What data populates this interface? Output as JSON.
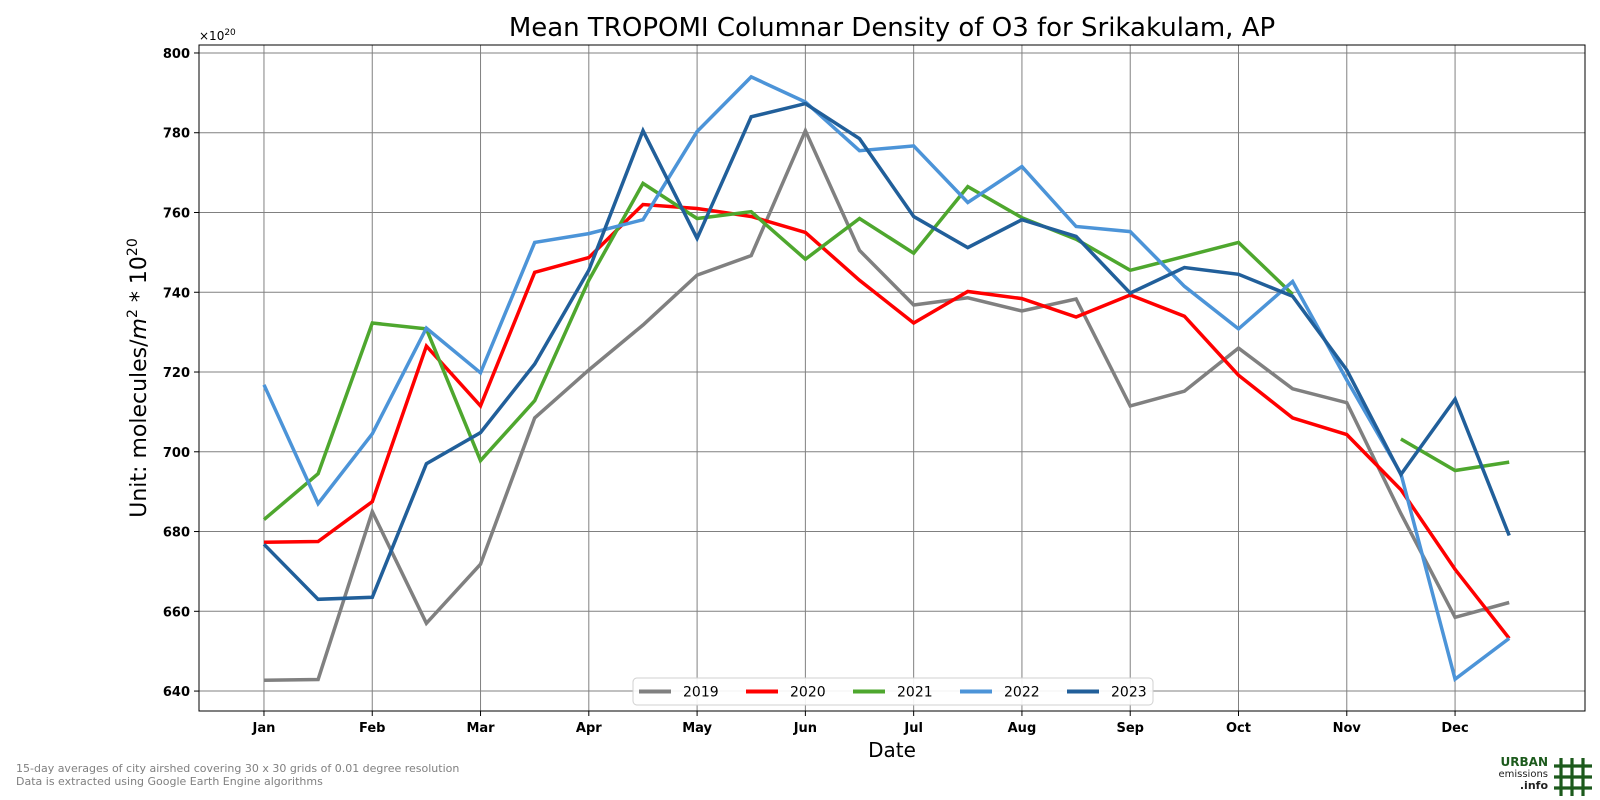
{
  "chart_data": {
    "type": "line",
    "title": "Mean TROPOMI Columnar Density of O3 for Srikakulam, AP",
    "xlabel": "Date",
    "ylabel": "Unit: molecules/m² * 10²⁰",
    "ylabel_parts": {
      "prefix": "Unit: molecules/",
      "m": "m",
      "exp2": "2",
      "mid": " * 10",
      "exp20": "20"
    },
    "y_offset_text": {
      "base": "×10",
      "exp": "20"
    },
    "ylim": [
      635,
      802
    ],
    "yticks": [
      640,
      660,
      680,
      700,
      720,
      740,
      760,
      780,
      800
    ],
    "xlim": [
      0.4,
      13.2
    ],
    "xticks": [
      1,
      2,
      3,
      4,
      5,
      6,
      7,
      8,
      9,
      10,
      11,
      12
    ],
    "xtick_labels": [
      "Jan",
      "Feb",
      "Mar",
      "Apr",
      "May",
      "Jun",
      "Jul",
      "Aug",
      "Sep",
      "Oct",
      "Nov",
      "Dec"
    ],
    "x": [
      1,
      1.5,
      2,
      2.5,
      3,
      3.5,
      4,
      4.5,
      5,
      5.5,
      6,
      6.5,
      7,
      7.5,
      8,
      8.5,
      9,
      9.5,
      10,
      10.5,
      11,
      11.5,
      12,
      12.5
    ],
    "grid": true,
    "legend": {
      "placement": "bottom-center",
      "columns": 5
    },
    "series": [
      {
        "name": "2019",
        "color": "#808080",
        "values": [
          642.7,
          642.9,
          685,
          657,
          671.8,
          708.5,
          720.5,
          731.8,
          744.3,
          749.2,
          780.5,
          750.5,
          736.8,
          738.6,
          735.3,
          738.3,
          711.5,
          715.2,
          726,
          715.8,
          712.3,
          684.5,
          658.5,
          662.2
        ]
      },
      {
        "name": "2020",
        "color": "#ff0000",
        "values": [
          677.3,
          677.5,
          687.5,
          726.5,
          711.5,
          745,
          748.7,
          762,
          761,
          759,
          755,
          743,
          732.3,
          740.2,
          738.4,
          733.8,
          739.3,
          734,
          719.2,
          708.5,
          704.3,
          690.5,
          670.5,
          653.2
        ]
      },
      {
        "name": "2021",
        "color": "#4ea72e",
        "values": [
          683,
          694.5,
          732.3,
          730.8,
          697.8,
          712.8,
          743,
          767.3,
          758.5,
          760.2,
          748.3,
          758.5,
          749.8,
          766.5,
          758.7,
          753.3,
          745.5,
          749,
          752.5,
          739.5,
          null,
          703.2,
          695.3,
          697.4
        ]
      },
      {
        "name": "2022",
        "color": "#4c94d8",
        "values": [
          716.8,
          687,
          704.5,
          731,
          719.8,
          752.5,
          754.7,
          758.2,
          780.3,
          794,
          787.7,
          775.5,
          776.7,
          762.5,
          771.5,
          756.5,
          755.2,
          741.5,
          730.8,
          742.7,
          718,
          694.5,
          643,
          653.2
        ]
      },
      {
        "name": "2023",
        "color": "#215f9a",
        "values": [
          676.8,
          663,
          663.5,
          697,
          704.8,
          722,
          745.5,
          780.5,
          753.5,
          784,
          787.3,
          778.5,
          759,
          751.2,
          758.2,
          754,
          739.8,
          746.2,
          744.5,
          739,
          720.5,
          694.3,
          713.2,
          679
        ]
      }
    ]
  },
  "footnote": {
    "line1": "15-day averages of city airshed covering 30 x 30 grids of 0.01 degree resolution",
    "line2": "Data is extracted using Google Earth Engine algorithms"
  },
  "logo": {
    "urban": "URBAN",
    "emissions": "emissions",
    "info": ".info",
    "icon": "grid-icon"
  }
}
